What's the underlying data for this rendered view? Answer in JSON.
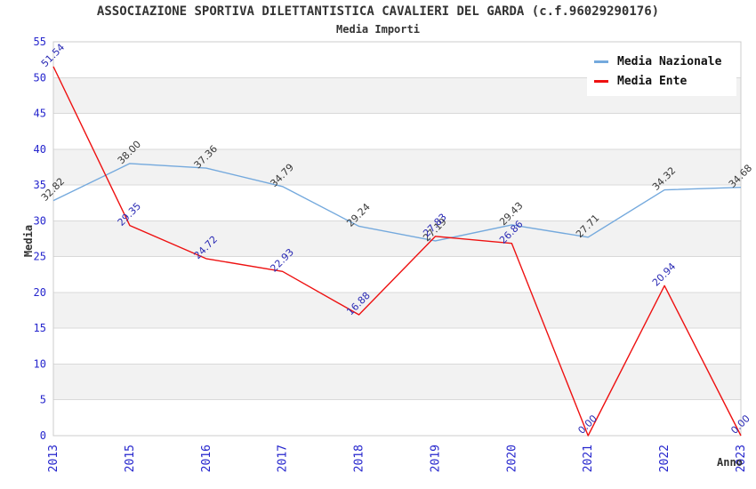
{
  "header": {
    "title": "ASSOCIAZIONE SPORTIVA DILETTANTISTICA CAVALIERI DEL GARDA (c.f.96029290176)",
    "subtitle": "Media Importi"
  },
  "legend": {
    "position": "top-right",
    "items": [
      {
        "label": "Media Nazionale",
        "color": "#74a9dd"
      },
      {
        "label": "Media Ente",
        "color": "#ee1111"
      }
    ]
  },
  "axes": {
    "ylabel": "Media",
    "xlabel": "Anno",
    "ymin": 0,
    "ymax": 55,
    "ytick_step": 5,
    "tick_color": "#2525cd"
  },
  "chart_data": {
    "type": "line",
    "title": "Media Importi",
    "categories": [
      "2013",
      "2015",
      "2016",
      "2017",
      "2018",
      "2019",
      "2020",
      "2021",
      "2022",
      "2023"
    ],
    "series": [
      {
        "name": "Media Nazionale",
        "color": "#74a9dd",
        "label_color": "#383838",
        "values": [
          32.82,
          38.0,
          37.36,
          34.79,
          29.24,
          27.19,
          29.43,
          27.71,
          34.32,
          34.68
        ]
      },
      {
        "name": "Media Ente",
        "color": "#ee1111",
        "label_color": "#2a2ab4",
        "values": [
          51.54,
          29.35,
          24.72,
          22.93,
          16.88,
          27.83,
          26.86,
          0.0,
          20.94,
          0.0
        ]
      }
    ],
    "ylim": [
      0,
      55
    ],
    "grid": true,
    "legend_position": "top-right",
    "band_colors": [
      "#ffffff",
      "#f2f2f2"
    ],
    "grid_color": "#d9d9d9",
    "border_color": "#cccccc"
  }
}
